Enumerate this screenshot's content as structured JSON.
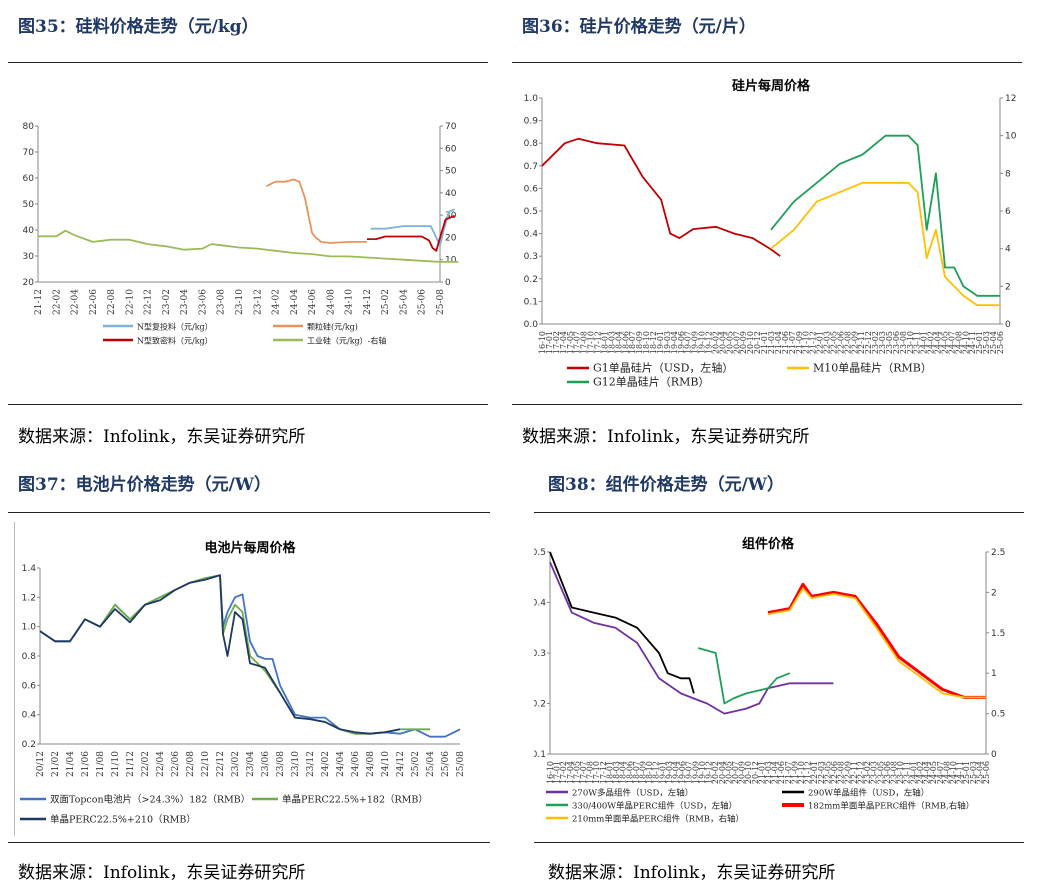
{
  "panels": [
    {
      "fig_title": "图35：硅料价格走势（元/kg）",
      "source": "数据来源：Infolink，东吴证券研究所",
      "chart_data": {
        "type": "line",
        "title": "",
        "x_ticks": [
          "21-12",
          "22-02",
          "22-04",
          "22-06",
          "22-08",
          "22-10",
          "22-12",
          "23-02",
          "23-04",
          "23-06",
          "23-08",
          "23-10",
          "23-12",
          "24-02",
          "24-04",
          "24-06",
          "24-08",
          "24-10",
          "24-12",
          "25-02",
          "25-04",
          "25-06",
          "25-08"
        ],
        "ylim_left": [
          20,
          80
        ],
        "left_ticks": [
          "80",
          "70",
          "60",
          "50",
          "40",
          "30",
          "20"
        ],
        "ylim_right": [
          0,
          70
        ],
        "right_ticks": [
          "70",
          "60",
          "50",
          "40",
          "30",
          "20",
          "10",
          "0"
        ],
        "series": [
          {
            "name": "N型复投料（元/kg）",
            "color": "#7fb3d9",
            "axis": "left",
            "x": [
              18.2,
              19,
              20,
              21,
              21.5,
              21.6,
              22,
              22.2,
              22.5,
              22.8
            ],
            "y": [
              40.5,
              40.5,
              41.5,
              41.5,
              41.5,
              40,
              34,
              40,
              47,
              48
            ]
          },
          {
            "name": "颗粒硅(元/kg)",
            "color": "#e8935a",
            "axis": "right",
            "x": [
              12.5,
              13,
              13.5,
              14,
              14.3,
              14.6,
              14.8,
              15,
              15.2,
              15.5,
              16,
              17,
              17.5,
              18
            ],
            "y": [
              43,
              45,
              45,
              46,
              45,
              38,
              30,
              22,
              20,
              18,
              17.5,
              18,
              18,
              18
            ]
          },
          {
            "name": "N型致密料（元/kg）",
            "color": "#c00000",
            "axis": "left",
            "x": [
              18,
              18.5,
              19,
              19.5,
              20,
              20.5,
              21,
              21.4,
              21.6,
              21.8,
              22,
              22.3,
              22.8
            ],
            "y": [
              36.5,
              36.5,
              37.5,
              37.5,
              37.5,
              37.5,
              37.5,
              36,
              33,
              32,
              37,
              44,
              45.5
            ]
          },
          {
            "name": "工业硅（元/kg）-右轴",
            "color": "#9bbb59",
            "axis": "right",
            "x": [
              0,
              1,
              1.5,
              2,
              3,
              4,
              5,
              6,
              7,
              8,
              9,
              9.5,
              10,
              11,
              12,
              13,
              14,
              15,
              16,
              17,
              18,
              19,
              20,
              21,
              22,
              23
            ],
            "y": [
              20.5,
              20.5,
              23,
              21,
              18,
              19,
              19,
              17,
              16,
              14.5,
              15,
              17,
              16.5,
              15.5,
              15,
              14,
              13,
              12.5,
              11.5,
              11.5,
              11,
              10.5,
              10,
              9.5,
              9,
              9
            ]
          }
        ]
      }
    },
    {
      "fig_title": "图36：硅片价格走势（元/片）",
      "source": "数据来源：Infolink，东吴证券研究所",
      "chart_data": {
        "type": "line",
        "title": "硅片每周价格",
        "x_ticks": [
          "16-10",
          "17-01",
          "17-02",
          "17-04",
          "17-05",
          "17-07",
          "17-08",
          "17-10",
          "17-12",
          "18-01",
          "18-03",
          "18-04",
          "18-06",
          "18-07",
          "18-09",
          "18-10",
          "18-12",
          "19-01",
          "19-03",
          "19-04",
          "19-06",
          "19-07",
          "19-09",
          "19-10",
          "19-12",
          "20-02",
          "20-04",
          "20-05",
          "20-07",
          "20-09",
          "20-10",
          "20-12",
          "21-01",
          "21-03",
          "21-04",
          "21-06",
          "21-07",
          "21-09",
          "21-10",
          "21-12",
          "22-01",
          "22-03",
          "22-05",
          "22-06",
          "22-08",
          "22-09",
          "22-11",
          "22-12",
          "23-02",
          "23-03",
          "23-05",
          "23-06",
          "23-08",
          "23-10",
          "23-11",
          "24-01",
          "24-02",
          "24-04",
          "24-05",
          "24-07",
          "24-08",
          "24-10",
          "24-11",
          "25-01",
          "25-03",
          "25-04",
          "25-06"
        ],
        "ylim_left": [
          0,
          1.0
        ],
        "left_ticks": [
          "1.0",
          "0.9",
          "0.8",
          "0.7",
          "0.6",
          "0.5",
          "0.4",
          "0.3",
          "0.2",
          "0.1",
          "0.0"
        ],
        "ylim_right": [
          0,
          12
        ],
        "right_ticks": [
          "12",
          "10",
          "8",
          "6",
          "4",
          "2",
          "0"
        ],
        "series": [
          {
            "name": "G1单晶硅片（USD，左轴）",
            "color": "#c00000",
            "axis": "left",
            "x": [
              0,
              0.05,
              0.08,
              0.12,
              0.18,
              0.22,
              0.26,
              0.28,
              0.3,
              0.33,
              0.38,
              0.42,
              0.46,
              0.5,
              0.52
            ],
            "y": [
              0.7,
              0.8,
              0.82,
              0.8,
              0.79,
              0.65,
              0.55,
              0.4,
              0.38,
              0.42,
              0.43,
              0.4,
              0.38,
              0.33,
              0.3
            ]
          },
          {
            "name": "M10单晶硅片（RMB）",
            "color": "#ffc000",
            "axis": "right",
            "x": [
              0.5,
              0.55,
              0.6,
              0.65,
              0.7,
              0.75,
              0.8,
              0.82,
              0.84,
              0.86,
              0.88,
              0.9,
              0.92,
              0.95,
              0.98,
              1.0
            ],
            "y": [
              4,
              5,
              6.5,
              7,
              7.5,
              7.5,
              7.5,
              7,
              3.5,
              5,
              2.5,
              2,
              1.5,
              1,
              1,
              1
            ]
          },
          {
            "name": "G12单晶硅片（RMB）",
            "color": "#1e9e57",
            "axis": "right",
            "x": [
              0.5,
              0.55,
              0.6,
              0.65,
              0.7,
              0.75,
              0.8,
              0.82,
              0.84,
              0.86,
              0.88,
              0.9,
              0.92,
              0.95,
              0.98,
              1.0
            ],
            "y": [
              5,
              6.5,
              7.5,
              8.5,
              9,
              10,
              10,
              9.5,
              5,
              8,
              3,
              3,
              2,
              1.5,
              1.5,
              1.5
            ]
          }
        ]
      }
    },
    {
      "fig_title": "图37：电池片价格走势（元/W）",
      "source": "数据来源：Infolink，东吴证券研究所",
      "chart_data": {
        "type": "line",
        "title": "电池片每周价格",
        "x_ticks": [
          "20/12",
          "21/02",
          "21/04",
          "21/06",
          "21/08",
          "21/10",
          "21/12",
          "22/02",
          "22/04",
          "22/06",
          "22/08",
          "22/10",
          "22/12",
          "23/02",
          "23/04",
          "23/06",
          "23/08",
          "23/10",
          "23/12",
          "24/02",
          "24/04",
          "24/06",
          "24/08",
          "24/10",
          "24/12",
          "25/02",
          "25/04",
          "25/06",
          "25/08"
        ],
        "ylim_left": [
          0.2,
          1.4
        ],
        "left_ticks": [
          "1.4",
          "1.2",
          "1.0",
          "0.8",
          "0.6",
          "0.4",
          "0.2"
        ],
        "series": [
          {
            "name": "双面Topcon电池片（>24.3%）182（RMB）",
            "color": "#4472c4",
            "axis": "left",
            "x": [
              0,
              1,
              2,
              3,
              4,
              5,
              6,
              7,
              8,
              9,
              10,
              11,
              12,
              12.2,
              12.5,
              13,
              13.5,
              14,
              14.5,
              15,
              15.5,
              16,
              17,
              18,
              19,
              20,
              21,
              22,
              23,
              24,
              25,
              26,
              27,
              28
            ],
            "y": [
              0.97,
              0.9,
              0.9,
              1.05,
              1.0,
              1.15,
              1.05,
              1.15,
              1.2,
              1.25,
              1.3,
              1.33,
              1.35,
              1.0,
              1.1,
              1.2,
              1.22,
              0.9,
              0.8,
              0.78,
              0.78,
              0.6,
              0.4,
              0.38,
              0.38,
              0.3,
              0.27,
              0.27,
              0.28,
              0.27,
              0.3,
              0.25,
              0.25,
              0.3
            ]
          },
          {
            "name": "单晶PERC22.5%+182（RMB）",
            "color": "#70ad47",
            "axis": "left",
            "x": [
              0,
              1,
              2,
              3,
              4,
              5,
              6,
              7,
              8,
              9,
              10,
              11,
              12,
              12.2,
              12.5,
              13,
              13.5,
              14,
              15,
              16,
              17,
              18,
              19,
              20,
              21,
              22,
              23,
              24,
              25,
              26
            ],
            "y": [
              0.97,
              0.9,
              0.9,
              1.05,
              1.0,
              1.15,
              1.05,
              1.15,
              1.2,
              1.25,
              1.3,
              1.33,
              1.35,
              0.95,
              1.05,
              1.15,
              1.1,
              0.8,
              0.7,
              0.55,
              0.38,
              0.37,
              0.35,
              0.3,
              0.27,
              0.27,
              0.28,
              0.3,
              0.3,
              0.3
            ]
          },
          {
            "name": "单晶PERC22.5%+210（RMB）",
            "color": "#1f3864",
            "axis": "left",
            "x": [
              0,
              1,
              2,
              3,
              4,
              5,
              6,
              7,
              8,
              9,
              10,
              11,
              12,
              12.2,
              12.5,
              13,
              13.5,
              14,
              15,
              16,
              17,
              18,
              19,
              20,
              21,
              22,
              23,
              24
            ],
            "y": [
              0.97,
              0.9,
              0.9,
              1.05,
              1.0,
              1.12,
              1.03,
              1.15,
              1.18,
              1.25,
              1.3,
              1.32,
              1.35,
              0.95,
              0.8,
              1.1,
              1.05,
              0.75,
              0.72,
              0.55,
              0.38,
              0.37,
              0.35,
              0.3,
              0.28,
              0.27,
              0.28,
              0.3
            ]
          }
        ]
      }
    },
    {
      "fig_title": "图38：组件价格走势（元/W）",
      "source": "数据来源：Infolink，东吴证券研究所",
      "chart_data": {
        "type": "line",
        "title": "组件价格",
        "x_ticks": [
          "16-10",
          "17-01",
          "17-02",
          "17-04",
          "17-05",
          "17-07",
          "17-08",
          "17-10",
          "17-12",
          "18-01",
          "18-03",
          "18-04",
          "18-06",
          "18-07",
          "18-09",
          "18-10",
          "18-12",
          "19-01",
          "19-03",
          "19-04",
          "19-06",
          "19-07",
          "19-09",
          "19-10",
          "19-12",
          "20-02",
          "20-04",
          "20-05",
          "20-07",
          "20-09",
          "20-10",
          "20-12",
          "21-01",
          "21-03",
          "21-04",
          "21-06",
          "21-07",
          "21-09",
          "21-10",
          "21-12",
          "22-01",
          "22-03",
          "22-05",
          "22-06",
          "22-08",
          "22-09",
          "22-11",
          "22-12",
          "23-02",
          "23-03",
          "23-05",
          "23-06",
          "23-08",
          "23-10",
          "23-11",
          "24-01",
          "24-02",
          "24-04",
          "24-05",
          "24-07",
          "24-08",
          "24-10",
          "24-11",
          "25-01",
          "25-03",
          "25-04",
          "25-06"
        ],
        "ylim_left": [
          0.1,
          0.5
        ],
        "left_ticks": [
          "0.5",
          "0.4",
          "0.3",
          "0.2",
          "0.1"
        ],
        "ylim_right": [
          0,
          2.5
        ],
        "right_ticks": [
          "2.5",
          "2",
          "1.5",
          "1",
          "0.5",
          "0"
        ],
        "series": [
          {
            "name": "270W多晶组件（USD，左轴）",
            "color": "#7030a0",
            "axis": "left",
            "x": [
              0,
              0.05,
              0.1,
              0.15,
              0.2,
              0.25,
              0.3,
              0.33,
              0.36,
              0.4,
              0.45,
              0.48,
              0.5,
              0.55,
              0.6,
              0.65
            ],
            "y": [
              0.48,
              0.38,
              0.36,
              0.35,
              0.32,
              0.25,
              0.22,
              0.21,
              0.2,
              0.18,
              0.19,
              0.2,
              0.23,
              0.24,
              0.24,
              0.24
            ]
          },
          {
            "name": "290W单晶组件（USD，左轴）",
            "color": "#000000",
            "axis": "left",
            "x": [
              0,
              0.05,
              0.1,
              0.15,
              0.2,
              0.25,
              0.27,
              0.3,
              0.32,
              0.33
            ],
            "y": [
              0.5,
              0.39,
              0.38,
              0.37,
              0.35,
              0.3,
              0.26,
              0.25,
              0.25,
              0.22
            ]
          },
          {
            "name": "330/400W单晶PERC组件（USD，左轴）",
            "color": "#1e9e57",
            "axis": "left",
            "x": [
              0.34,
              0.38,
              0.4,
              0.42,
              0.45,
              0.5,
              0.52,
              0.55
            ],
            "y": [
              0.31,
              0.3,
              0.2,
              0.21,
              0.22,
              0.23,
              0.25,
              0.26
            ]
          },
          {
            "name": "182mm单面单晶PERC组件（RMB,右轴）",
            "color": "#ff0000",
            "axis": "right",
            "x": [
              0.5,
              0.55,
              0.58,
              0.6,
              0.65,
              0.7,
              0.75,
              0.8,
              0.85,
              0.9,
              0.95,
              1.0
            ],
            "y": [
              1.75,
              1.8,
              2.1,
              1.95,
              2.0,
              1.95,
              1.6,
              1.2,
              1.0,
              0.8,
              0.7,
              0.7
            ]
          },
          {
            "name": "210mm单面单晶PERC组件（RMB，右轴）",
            "color": "#ffc000",
            "axis": "right",
            "x": [
              0.5,
              0.55,
              0.58,
              0.6,
              0.65,
              0.7,
              0.75,
              0.8,
              0.85,
              0.9,
              0.95,
              1.0
            ],
            "y": [
              1.73,
              1.78,
              2.05,
              1.93,
              1.98,
              1.93,
              1.55,
              1.15,
              0.95,
              0.75,
              0.7,
              0.7
            ]
          }
        ]
      }
    }
  ]
}
